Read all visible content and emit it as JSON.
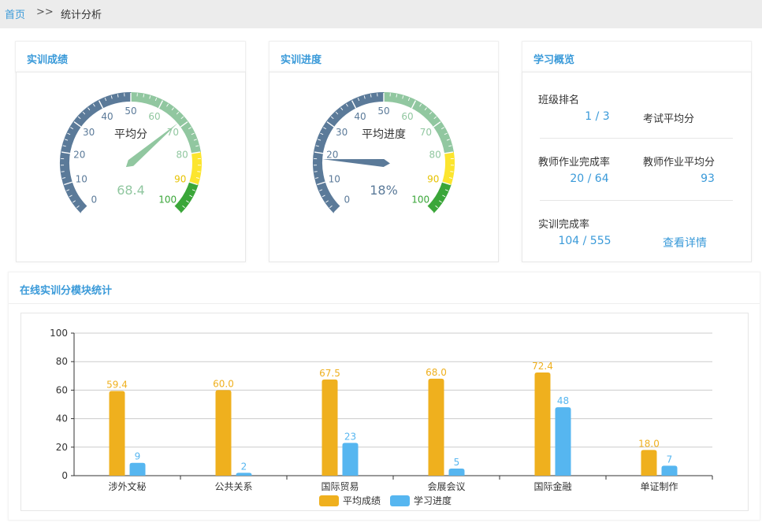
{
  "breadcrumb": {
    "home": "首页",
    "separator": ">>",
    "current": "统计分析"
  },
  "cards": {
    "score": {
      "title": "实训成绩",
      "gauge": {
        "name": "平均分",
        "value": 68.4,
        "value_text": "68.4",
        "min": 0,
        "max": 100,
        "ticks": [
          "0",
          "10",
          "20",
          "30",
          "40",
          "50",
          "60",
          "70",
          "80",
          "90",
          "100"
        ],
        "bands": [
          {
            "to": 0.5,
            "color": "#5b7a99"
          },
          {
            "to": 0.8,
            "color": "#91c7a0"
          },
          {
            "to": 0.9,
            "color": "#fce52e"
          },
          {
            "to": 1.0,
            "color": "#3aa639"
          }
        ],
        "value_color": "#91c7a0",
        "pointer_color": "#91c7a0"
      }
    },
    "progress": {
      "title": "实训进度",
      "gauge": {
        "name": "平均进度",
        "value": 18,
        "value_text": "18%",
        "min": 0,
        "max": 100,
        "ticks": [
          "0",
          "10",
          "20",
          "30",
          "40",
          "50",
          "60",
          "70",
          "80",
          "90",
          "100"
        ],
        "bands": [
          {
            "to": 0.5,
            "color": "#5b7a99"
          },
          {
            "to": 0.8,
            "color": "#91c7a0"
          },
          {
            "to": 0.9,
            "color": "#fce52e"
          },
          {
            "to": 1.0,
            "color": "#3aa639"
          }
        ],
        "value_color": "#5b7a99",
        "pointer_color": "#5b7a99"
      }
    },
    "overview": {
      "title": "学习概览",
      "class_rank_label": "班级排名",
      "class_rank_value": "1 / 3",
      "exam_avg_label": "考试平均分",
      "teacher_hw_rate_label": "教师作业完成率",
      "teacher_hw_rate_value": "20 / 64",
      "teacher_hw_avg_label": "教师作业平均分",
      "teacher_hw_avg_value": "93",
      "training_rate_label": "实训完成率",
      "training_rate_value": "104 / 555",
      "details_link": "查看详情"
    }
  },
  "bottom": {
    "title": "在线实训分模块统计"
  },
  "chart_data": {
    "type": "bar",
    "categories": [
      "涉外文秘",
      "公共关系",
      "国际贸易",
      "会展会议",
      "国际金融",
      "单证制作"
    ],
    "series": [
      {
        "name": "平均成绩",
        "values": [
          59.4,
          60.0,
          67.5,
          68.0,
          72.4,
          18.0
        ],
        "labels": [
          "59.4",
          "60.0",
          "67.5",
          "68.0",
          "72.4",
          "18.0"
        ],
        "color": "#efb01e"
      },
      {
        "name": "学习进度",
        "values": [
          9,
          2,
          23,
          5,
          48,
          7
        ],
        "labels": [
          "9",
          "2",
          "23",
          "5",
          "48",
          "7"
        ],
        "color": "#56b6f0"
      }
    ],
    "ylim": [
      0,
      100
    ],
    "yticks": [
      "0",
      "20",
      "40",
      "60",
      "80",
      "100"
    ],
    "grid": true,
    "legend": "bottom"
  }
}
